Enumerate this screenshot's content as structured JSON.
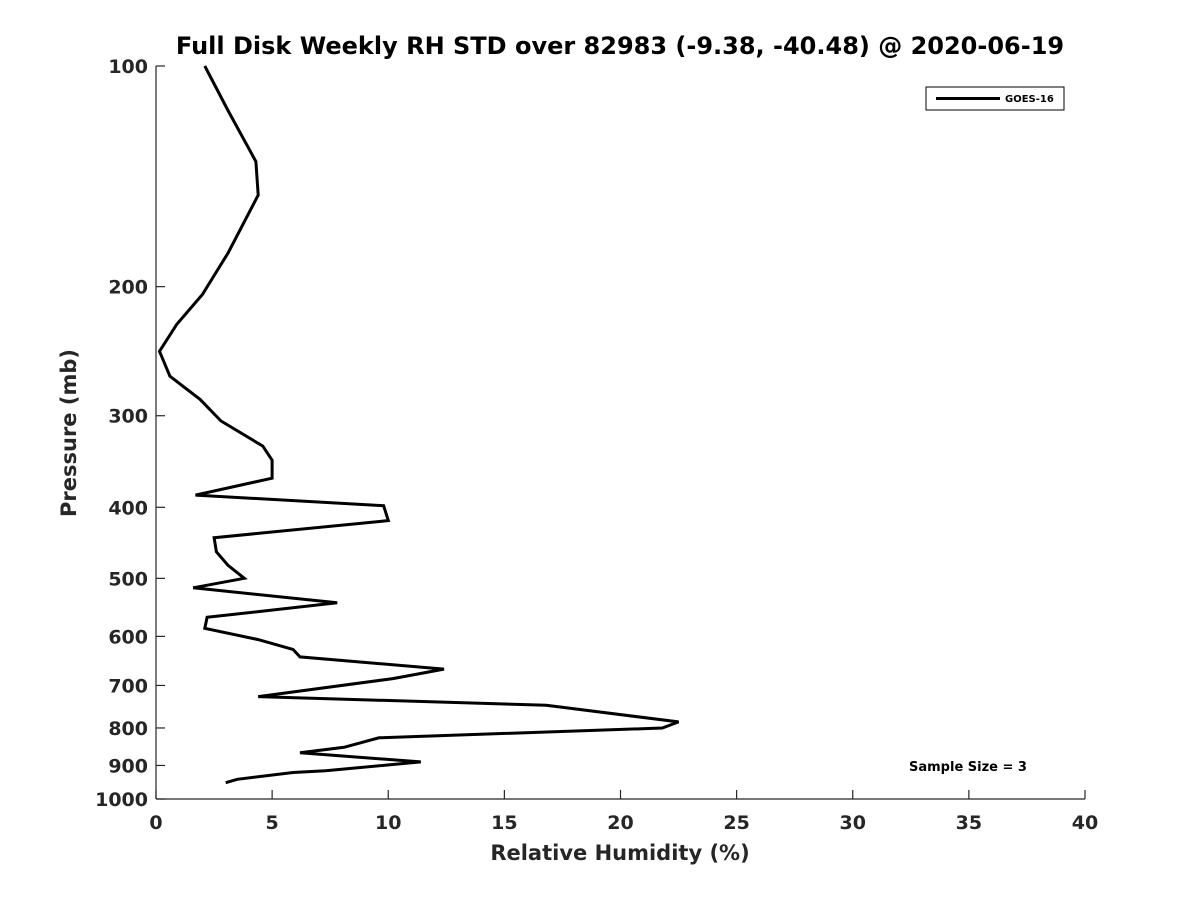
{
  "chart_data": {
    "type": "line",
    "title": "Full Disk Weekly RH STD over 82983 (-9.38, -40.48) @ 2020-06-19",
    "xlabel": "Relative Humidity (%)",
    "ylabel": "Pressure (mb)",
    "xlim": [
      0,
      40
    ],
    "ylim": [
      100,
      1000
    ],
    "y_scale": "log",
    "y_reversed": true,
    "x_ticks": [
      0,
      5,
      10,
      15,
      20,
      25,
      30,
      35,
      40
    ],
    "y_ticks": [
      100,
      200,
      300,
      400,
      500,
      600,
      700,
      800,
      900,
      1000
    ],
    "grid": false,
    "legend_position": "top-right",
    "annotation": "Sample Size = 3",
    "series": [
      {
        "name": "GOES-16",
        "color": "#000000",
        "points": [
          [
            2.1,
            100
          ],
          [
            3.1,
            115
          ],
          [
            4.3,
            135
          ],
          [
            4.4,
            150
          ],
          [
            3.1,
            180
          ],
          [
            2.0,
            205
          ],
          [
            0.9,
            225
          ],
          [
            0.15,
            245
          ],
          [
            0.6,
            265
          ],
          [
            1.9,
            285
          ],
          [
            2.8,
            305
          ],
          [
            4.6,
            330
          ],
          [
            5.0,
            345
          ],
          [
            5.0,
            365
          ],
          [
            1.7,
            385
          ],
          [
            9.8,
            398
          ],
          [
            10.0,
            417
          ],
          [
            2.5,
            440
          ],
          [
            2.6,
            460
          ],
          [
            3.1,
            480
          ],
          [
            3.8,
            500
          ],
          [
            1.6,
            515
          ],
          [
            7.8,
            540
          ],
          [
            2.2,
            565
          ],
          [
            2.1,
            585
          ],
          [
            4.4,
            606
          ],
          [
            5.9,
            625
          ],
          [
            6.2,
            640
          ],
          [
            12.4,
            665
          ],
          [
            10.2,
            685
          ],
          [
            4.4,
            725
          ],
          [
            16.8,
            745
          ],
          [
            22.5,
            785
          ],
          [
            21.8,
            800
          ],
          [
            9.6,
            825
          ],
          [
            8.1,
            850
          ],
          [
            6.2,
            865
          ],
          [
            11.4,
            890
          ],
          [
            7.3,
            915
          ],
          [
            5.9,
            920
          ],
          [
            3.5,
            940
          ],
          [
            3.0,
            950
          ]
        ]
      }
    ]
  }
}
